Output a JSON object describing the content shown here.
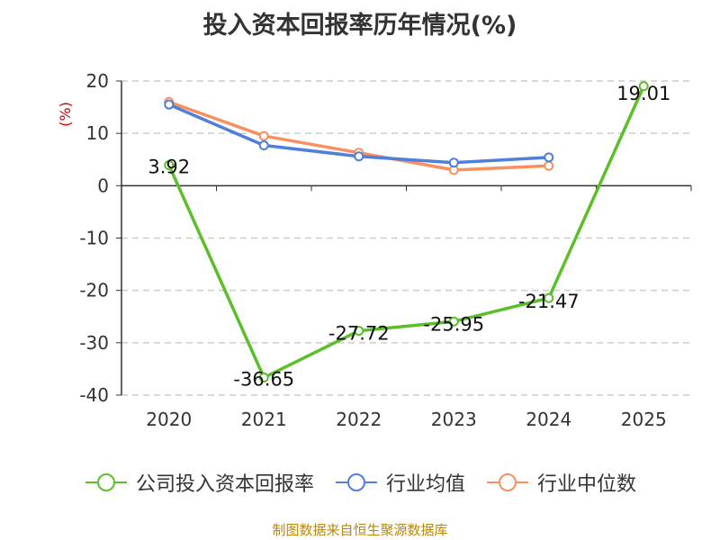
{
  "chart_data": {
    "type": "line",
    "title": "投入资本回报率历年情况(%)",
    "ylabel": "(%)",
    "xlabel": "",
    "categories": [
      "2020",
      "2021",
      "2022",
      "2023",
      "2024",
      "2025"
    ],
    "ylim": [
      -40,
      20
    ],
    "yticks": [
      20,
      10,
      0,
      -10,
      -20,
      -30,
      -40
    ],
    "grid": true,
    "legend_position": "bottom",
    "series": [
      {
        "name": "公司投入资本回报率",
        "color": "#5cbf2a",
        "values": [
          3.92,
          -36.65,
          -27.72,
          -25.95,
          -21.47,
          19.01
        ],
        "labels": [
          "3.92",
          "-36.65",
          "-27.72",
          "-25.95",
          "-21.47",
          "19.01"
        ]
      },
      {
        "name": "行业均值",
        "color": "#4f7fdb",
        "values": [
          15.5,
          7.7,
          5.6,
          4.4,
          5.4,
          null
        ]
      },
      {
        "name": "行业中位数",
        "color": "#f79060",
        "values": [
          16.0,
          9.5,
          6.3,
          3.0,
          3.8,
          null
        ]
      }
    ]
  },
  "source": "制图数据来自恒生聚源数据库"
}
